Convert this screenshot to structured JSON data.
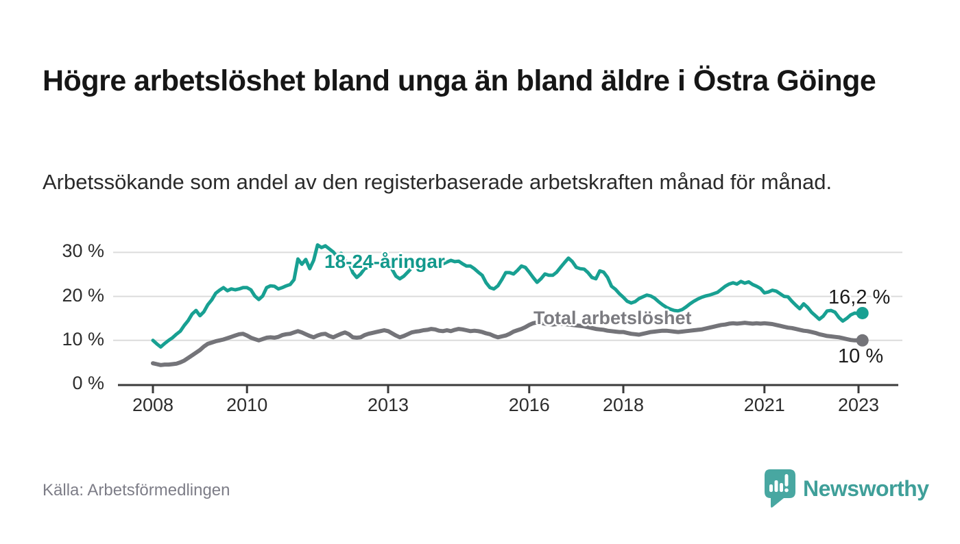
{
  "header": {
    "title": "Högre arbetslöshet bland unga än bland äldre i Östra Göinge",
    "subtitle": "Arbetssökande som andel av den registerbaserade arbetskraften månad för månad."
  },
  "footer": {
    "source": "Källa: Arbetsförmedlingen",
    "logo_text": "Newsworthy"
  },
  "colors": {
    "accent_teal": "#18a092",
    "neutral_gray": "#747479",
    "grid": "#dcdcdc",
    "axis": "#3a3a3a",
    "logo_teal": "#48a7a1",
    "value_label": "#1b1b1b"
  },
  "chart_data": {
    "type": "line",
    "title": "Högre arbetslöshet bland unga än bland äldre i Östra Göinge",
    "subtitle": "Arbetssökande som andel av den registerbaserade arbetskraften månad för månad.",
    "x_unit": "month",
    "x_start_year": 2008,
    "x_end_label_value_youth": "16,2 %",
    "x_end_label_value_total": "10 %",
    "x_tick_years": [
      2008,
      2010,
      2013,
      2016,
      2018,
      2021,
      2023
    ],
    "x_tick_labels": [
      "2008",
      "2010",
      "2013",
      "2016",
      "2018",
      "2021",
      "2023"
    ],
    "y_tick_values": [
      0,
      10,
      20,
      30
    ],
    "y_tick_labels": [
      "0 %",
      "10 %",
      "20 %",
      "30 %"
    ],
    "ylim": [
      0,
      33
    ],
    "grid": true,
    "legend_position": "inline-labels",
    "series": [
      {
        "name": "18-24-åringar",
        "color": "#18a092",
        "end_label": "16,2 %",
        "end_value": 16.2,
        "values": [
          10.0,
          9.2,
          8.5,
          9.3,
          10.0,
          10.6,
          11.4,
          12.1,
          13.4,
          14.5,
          16.0,
          16.8,
          15.6,
          16.5,
          18.1,
          19.2,
          20.7,
          21.4,
          22.0,
          21.3,
          21.7,
          21.5,
          21.7,
          22.0,
          22.0,
          21.5,
          20.1,
          19.3,
          20.1,
          22.0,
          22.4,
          22.3,
          21.7,
          22.0,
          22.4,
          22.7,
          23.8,
          28.5,
          27.3,
          28.4,
          26.3,
          28.2,
          31.7,
          31.1,
          31.5,
          30.8,
          30.1,
          29.0,
          29.8,
          28.2,
          27.7,
          25.4,
          24.3,
          25.1,
          26.3,
          26.6,
          27.2,
          27.7,
          27.4,
          27.1,
          26.9,
          26.2,
          24.6,
          24.0,
          24.6,
          25.5,
          26.5,
          27.2,
          27.6,
          27.3,
          27.8,
          28.0,
          27.6,
          28.0,
          27.4,
          27.8,
          28.2,
          27.9,
          28.0,
          27.4,
          26.9,
          26.9,
          26.3,
          25.5,
          24.8,
          23.1,
          22.0,
          21.7,
          22.4,
          23.8,
          25.4,
          25.4,
          25.1,
          25.9,
          26.9,
          26.6,
          25.5,
          24.3,
          23.2,
          24.0,
          25.1,
          24.8,
          24.8,
          25.5,
          26.6,
          27.7,
          28.7,
          27.9,
          26.6,
          26.3,
          26.2,
          25.4,
          24.3,
          24.0,
          25.8,
          25.5,
          24.3,
          22.3,
          21.6,
          20.6,
          19.8,
          18.9,
          18.5,
          18.8,
          19.5,
          19.9,
          20.3,
          20.1,
          19.6,
          18.8,
          18.1,
          17.5,
          17.1,
          16.8,
          16.7,
          17.0,
          17.6,
          18.3,
          18.9,
          19.4,
          19.8,
          20.1,
          20.3,
          20.6,
          20.9,
          21.6,
          22.3,
          22.8,
          23.1,
          22.8,
          23.4,
          23.0,
          23.3,
          22.7,
          22.3,
          21.8,
          20.8,
          21.0,
          21.4,
          21.2,
          20.6,
          20.0,
          19.9,
          18.9,
          18.0,
          17.2,
          18.3,
          17.5,
          16.4,
          15.6,
          14.8,
          15.5,
          16.7,
          16.8,
          16.4,
          15.2,
          14.4,
          15.0,
          15.8,
          16.2,
          16.1,
          16.2
        ]
      },
      {
        "name": "Total arbetslöshet",
        "color": "#747479",
        "end_label": "10 %",
        "end_value": 10.0,
        "values": [
          4.8,
          4.6,
          4.4,
          4.5,
          4.5,
          4.6,
          4.7,
          5.0,
          5.4,
          6.0,
          6.6,
          7.2,
          7.8,
          8.6,
          9.2,
          9.5,
          9.8,
          10.0,
          10.2,
          10.5,
          10.8,
          11.1,
          11.4,
          11.5,
          11.1,
          10.6,
          10.3,
          10.0,
          10.3,
          10.6,
          10.7,
          10.6,
          10.8,
          11.2,
          11.4,
          11.5,
          11.8,
          12.1,
          11.8,
          11.4,
          11.0,
          10.7,
          11.1,
          11.4,
          11.5,
          11.0,
          10.7,
          11.1,
          11.5,
          11.8,
          11.4,
          10.7,
          10.6,
          10.7,
          11.2,
          11.5,
          11.7,
          11.9,
          12.1,
          12.3,
          12.1,
          11.6,
          11.1,
          10.7,
          11.0,
          11.4,
          11.8,
          12.0,
          12.1,
          12.3,
          12.4,
          12.6,
          12.5,
          12.2,
          12.1,
          12.3,
          12.1,
          12.4,
          12.6,
          12.5,
          12.3,
          12.1,
          12.2,
          12.1,
          11.9,
          11.6,
          11.4,
          11.0,
          10.7,
          10.9,
          11.1,
          11.5,
          12.0,
          12.3,
          12.6,
          13.0,
          13.5,
          13.9,
          14.1,
          14.0,
          13.8,
          13.7,
          13.6,
          13.7,
          13.8,
          13.7,
          13.6,
          13.5,
          13.4,
          13.3,
          13.2,
          13.0,
          12.8,
          12.6,
          12.5,
          12.4,
          12.2,
          12.1,
          12.0,
          11.9,
          11.9,
          11.7,
          11.5,
          11.4,
          11.3,
          11.5,
          11.7,
          11.9,
          12.0,
          12.1,
          12.2,
          12.2,
          12.1,
          12.0,
          11.9,
          12.0,
          12.1,
          12.2,
          12.3,
          12.4,
          12.5,
          12.7,
          12.9,
          13.1,
          13.3,
          13.5,
          13.6,
          13.8,
          13.9,
          13.8,
          13.9,
          14.0,
          13.9,
          13.8,
          13.9,
          13.8,
          13.9,
          13.8,
          13.7,
          13.5,
          13.3,
          13.1,
          12.9,
          12.8,
          12.6,
          12.4,
          12.2,
          12.1,
          11.9,
          11.7,
          11.4,
          11.2,
          11.0,
          10.9,
          10.8,
          10.7,
          10.5,
          10.3,
          10.1,
          10.0,
          10.0,
          10.0
        ]
      }
    ]
  }
}
